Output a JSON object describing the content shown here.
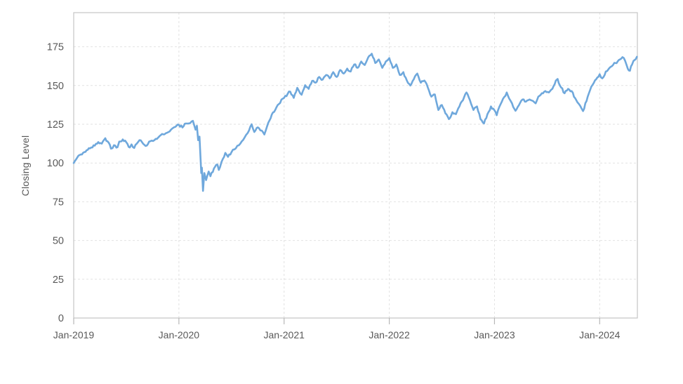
{
  "figure": {
    "background_color": "#ffffff",
    "line_color": "#6fa8dc",
    "grid_color": "#e2e2e2",
    "border_color": "#c4c4c4",
    "tick_mark_color": "#b7b7b7",
    "tick_text_color": "#595959"
  },
  "chart_data": {
    "type": "line",
    "title": "",
    "xlabel": "",
    "ylabel": "Closing Level",
    "grid": true,
    "legend": "none",
    "x_axis": {
      "unit": "months since Jan-2019",
      "range": [
        0,
        64.3
      ],
      "tick_positions": [
        0,
        12,
        24,
        36,
        48,
        60
      ],
      "tick_labels": [
        "Jan-2019",
        "Jan-2020",
        "Jan-2021",
        "Jan-2022",
        "Jan-2023",
        "Jan-2024"
      ]
    },
    "y_axis": {
      "range": [
        0,
        197
      ],
      "ticks": [
        0,
        25,
        50,
        75,
        100,
        125,
        150,
        175
      ]
    },
    "series": [
      {
        "points": [
          [
            0,
            100
          ],
          [
            0.4,
            103.5
          ],
          [
            0.8,
            105.5
          ],
          [
            1.2,
            107
          ],
          [
            1.6,
            108.5
          ],
          [
            2,
            110
          ],
          [
            2.4,
            111.2
          ],
          [
            2.8,
            113.5
          ],
          [
            3.2,
            112.5
          ],
          [
            3.6,
            116
          ],
          [
            4,
            113
          ],
          [
            4.25,
            109.3
          ],
          [
            4.6,
            111.5
          ],
          [
            5,
            110.2
          ],
          [
            5.2,
            113.8
          ],
          [
            5.6,
            115.2
          ],
          [
            6,
            113.4
          ],
          [
            6.4,
            110
          ],
          [
            6.6,
            112
          ],
          [
            6.9,
            109.7
          ],
          [
            7.2,
            112.5
          ],
          [
            7.5,
            114.7
          ],
          [
            7.8,
            113.4
          ],
          [
            8.2,
            111
          ],
          [
            8.6,
            113.8
          ],
          [
            9.2,
            114.7
          ],
          [
            9.8,
            117.4
          ],
          [
            10.5,
            119.2
          ],
          [
            11.1,
            121.5
          ],
          [
            11.6,
            123.3
          ],
          [
            12,
            124.6
          ],
          [
            12.4,
            122.9
          ],
          [
            12.8,
            125.5
          ],
          [
            13.6,
            127.2
          ],
          [
            13.9,
            121.5
          ],
          [
            14.05,
            124
          ],
          [
            14.2,
            114.7
          ],
          [
            14.35,
            117
          ],
          [
            14.55,
            93.5
          ],
          [
            14.62,
            97
          ],
          [
            14.75,
            82
          ],
          [
            14.9,
            93.5
          ],
          [
            15.1,
            89
          ],
          [
            15.4,
            94.5
          ],
          [
            15.6,
            91.5
          ],
          [
            16,
            96.5
          ],
          [
            16.4,
            99
          ],
          [
            16.55,
            95.5
          ],
          [
            17,
            102.5
          ],
          [
            17.3,
            106.5
          ],
          [
            17.6,
            104
          ],
          [
            18,
            107
          ],
          [
            18.5,
            109.5
          ],
          [
            19,
            112.5
          ],
          [
            19.5,
            116.5
          ],
          [
            20,
            121
          ],
          [
            20.3,
            125
          ],
          [
            20.6,
            120
          ],
          [
            21,
            123
          ],
          [
            21.3,
            121
          ],
          [
            21.75,
            118.4
          ],
          [
            22.2,
            126
          ],
          [
            22.6,
            131.3
          ],
          [
            23,
            134.3
          ],
          [
            23.4,
            138
          ],
          [
            23.7,
            141
          ],
          [
            24,
            142
          ],
          [
            24.4,
            144.5
          ],
          [
            24.7,
            146
          ],
          [
            25.1,
            142
          ],
          [
            25.5,
            148.5
          ],
          [
            26,
            144
          ],
          [
            26.4,
            150.2
          ],
          [
            26.8,
            147.8
          ],
          [
            27.2,
            153
          ],
          [
            27.6,
            151.8
          ],
          [
            28,
            155.5
          ],
          [
            28.4,
            153.8
          ],
          [
            28.8,
            156.8
          ],
          [
            29.2,
            154.6
          ],
          [
            29.6,
            158.6
          ],
          [
            30,
            155.5
          ],
          [
            30.4,
            160
          ],
          [
            30.8,
            157.7
          ],
          [
            31.2,
            160.9
          ],
          [
            31.6,
            159
          ],
          [
            32,
            163.6
          ],
          [
            32.4,
            161.4
          ],
          [
            32.8,
            165.5
          ],
          [
            33.2,
            163.2
          ],
          [
            33.6,
            168.2
          ],
          [
            34,
            170.5
          ],
          [
            34.4,
            164.5
          ],
          [
            34.8,
            166.8
          ],
          [
            35.2,
            161.4
          ],
          [
            35.6,
            165.5
          ],
          [
            36,
            167.7
          ],
          [
            36.4,
            161.4
          ],
          [
            36.8,
            163.6
          ],
          [
            37.2,
            156.8
          ],
          [
            37.6,
            158.6
          ],
          [
            38,
            153.2
          ],
          [
            38.4,
            150
          ],
          [
            38.8,
            154
          ],
          [
            39.2,
            157.7
          ],
          [
            39.6,
            151.8
          ],
          [
            40,
            153.2
          ],
          [
            40.4,
            148.7
          ],
          [
            40.8,
            142.8
          ],
          [
            41.2,
            144.2
          ],
          [
            41.6,
            134.2
          ],
          [
            42,
            137.4
          ],
          [
            42.4,
            132
          ],
          [
            42.8,
            128.3
          ],
          [
            43.2,
            132.8
          ],
          [
            43.6,
            131.5
          ],
          [
            44,
            136.5
          ],
          [
            44.4,
            140.5
          ],
          [
            44.8,
            145.5
          ],
          [
            45.2,
            140.5
          ],
          [
            45.6,
            134.2
          ],
          [
            46,
            136.5
          ],
          [
            46.4,
            128.3
          ],
          [
            46.8,
            125.5
          ],
          [
            47.2,
            131.5
          ],
          [
            47.6,
            136.5
          ],
          [
            48,
            134
          ],
          [
            48.25,
            130.8
          ],
          [
            48.7,
            138
          ],
          [
            49.1,
            142.5
          ],
          [
            49.4,
            145.5
          ],
          [
            49.8,
            140.5
          ],
          [
            50,
            138.5
          ],
          [
            50.4,
            133.7
          ],
          [
            50.8,
            137.4
          ],
          [
            51.2,
            141
          ],
          [
            51.6,
            139.6
          ],
          [
            52,
            141
          ],
          [
            52.4,
            140
          ],
          [
            52.7,
            138.5
          ],
          [
            53,
            142.8
          ],
          [
            53.4,
            145
          ],
          [
            53.8,
            146.4
          ],
          [
            54.2,
            145.5
          ],
          [
            54.6,
            147.8
          ],
          [
            55,
            153.2
          ],
          [
            55.2,
            154.2
          ],
          [
            55.6,
            148.7
          ],
          [
            56,
            145
          ],
          [
            56.4,
            147.8
          ],
          [
            56.8,
            146.4
          ],
          [
            57.2,
            141.9
          ],
          [
            57.6,
            138.3
          ],
          [
            58.1,
            133.5
          ],
          [
            58.5,
            140
          ],
          [
            58.9,
            147
          ],
          [
            59.2,
            150.5
          ],
          [
            59.6,
            154
          ],
          [
            60,
            157.3
          ],
          [
            60.3,
            154.6
          ],
          [
            60.7,
            159
          ],
          [
            61,
            160.5
          ],
          [
            61.4,
            162.5
          ],
          [
            61.8,
            164.5
          ],
          [
            62.2,
            166.5
          ],
          [
            62.6,
            168.3
          ],
          [
            62.9,
            166
          ],
          [
            63.2,
            160.9
          ],
          [
            63.45,
            159.5
          ],
          [
            63.7,
            163.6
          ],
          [
            64,
            166.5
          ],
          [
            64.24,
            168.5
          ]
        ]
      }
    ]
  }
}
